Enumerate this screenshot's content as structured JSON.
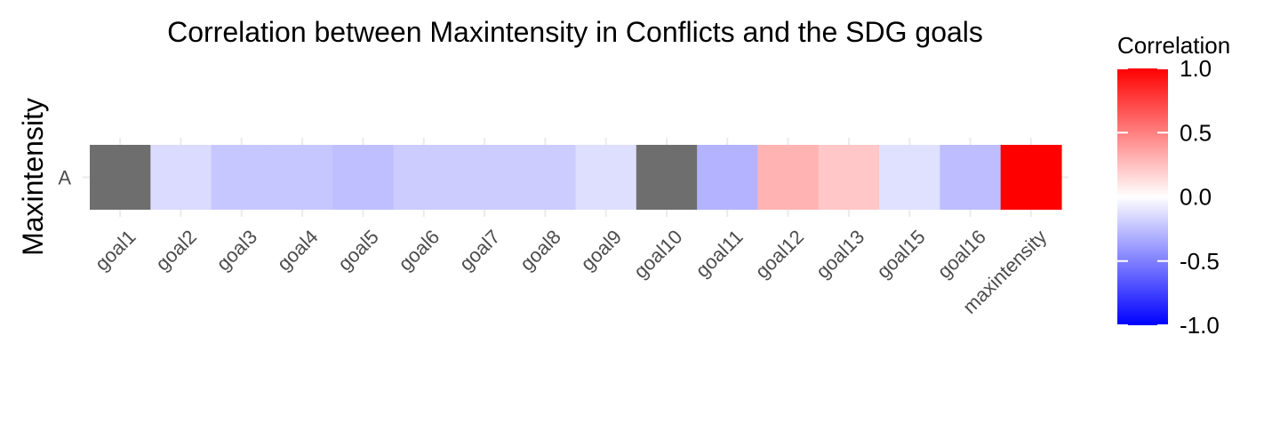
{
  "chart_data": {
    "type": "heatmap",
    "title": "Correlation between Maxintensity in Conflicts and the SDG goals",
    "xlabel": "",
    "ylabel": "Maxintensity",
    "x_categories": [
      "goal1",
      "goal2",
      "goal3",
      "goal4",
      "goal5",
      "goal6",
      "goal7",
      "goal8",
      "goal9",
      "goal10",
      "goal11",
      "goal12",
      "goal13",
      "goal15",
      "goal16",
      "maxintensity"
    ],
    "y_categories": [
      "A"
    ],
    "values": [
      [
        null,
        -0.14,
        -0.22,
        -0.22,
        -0.25,
        -0.2,
        -0.2,
        -0.2,
        -0.13,
        null,
        -0.3,
        0.3,
        0.22,
        -0.12,
        -0.26,
        1.0
      ]
    ],
    "na_color": "#6e6e6e",
    "color_scale": {
      "low": "#0000ff",
      "mid": "#ffffff",
      "high": "#ff0000",
      "limits": [
        -1,
        1
      ]
    },
    "legend": {
      "title": "Correlation",
      "position": "right",
      "ticks": [
        1.0,
        0.5,
        0.0,
        -0.5,
        -1.0
      ],
      "tick_labels": [
        "1.0",
        "0.5",
        "0.0",
        "-0.5",
        "-1.0"
      ]
    },
    "grid": true
  }
}
